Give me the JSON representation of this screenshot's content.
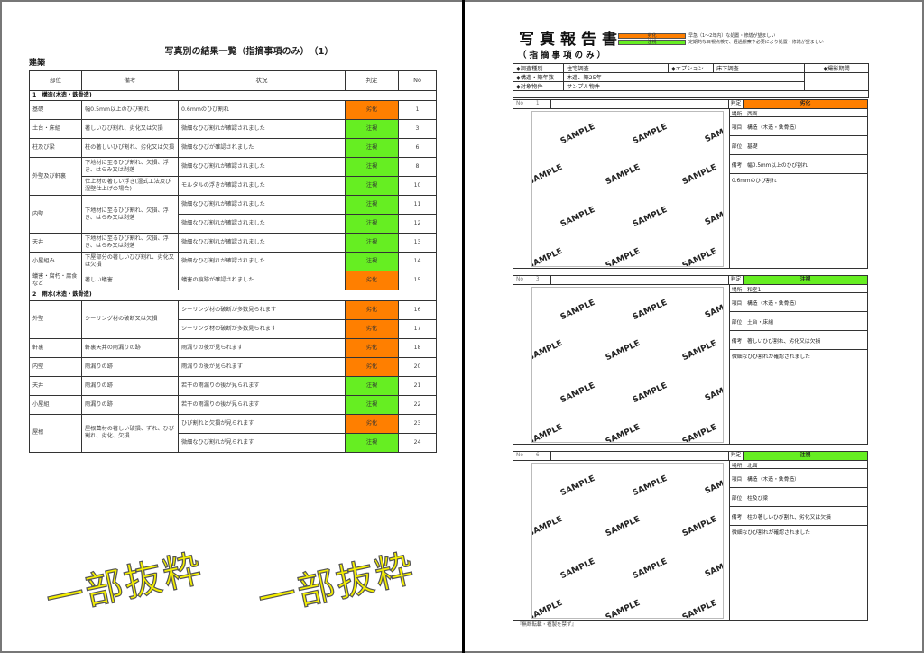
{
  "colors": {
    "deterioration": "#ff7f00",
    "watch": "#66ee22",
    "stamp": "#f5f000"
  },
  "left": {
    "title": "写真別の結果一覧（指摘事項のみ）　（1）",
    "subtitle": "建築",
    "headers": [
      "部位",
      "備考",
      "状況",
      "判定",
      "No"
    ],
    "sections": [
      {
        "label": "1　構造(木造・鉄骨造)",
        "rows": [
          {
            "part": "基礎",
            "note": "幅0.5mm以上のひび割れ",
            "status": "0.6mmのひび割れ",
            "judge": "劣化",
            "no": "1",
            "span": 1,
            "noteSpan": 1
          },
          {
            "part": "土台・床組",
            "note": "著しいひび割れ、劣化又は欠損",
            "status": "微細なひび割れが確認されました",
            "judge": "注視",
            "no": "3",
            "span": 1,
            "noteSpan": 1
          },
          {
            "part": "柱及び梁",
            "note": "柱の著しいひび割れ、劣化又は欠損",
            "status": "微細なひびが確認されました",
            "judge": "注視",
            "no": "6",
            "span": 1,
            "noteSpan": 1
          },
          {
            "part": "外壁及び軒裏",
            "note": "下地材に至るひび割れ、欠損、浮き、はらみ又は剥落",
            "status": "微細なひび割れが確認されました",
            "judge": "注視",
            "no": "8",
            "span": 2,
            "noteSpan": 1
          },
          {
            "part": null,
            "note": "仕上材の著しい浮き(湿式工法及び湿壁仕上げの場合)",
            "status": "モルタルの浮きが確認されました",
            "judge": "注視",
            "no": "10",
            "noteSpan": 1
          },
          {
            "part": "内壁",
            "note": "下地材に至るひび割れ、欠損、浮き、はらみ又は剥落",
            "status": "微細なひび割れが確認されました",
            "judge": "注視",
            "no": "11",
            "span": 2,
            "noteSpan": 2
          },
          {
            "part": null,
            "note": null,
            "status": "微細なひび割れが確認されました",
            "judge": "注視",
            "no": "12"
          },
          {
            "part": "天井",
            "note": "下地材に至るひび割れ、欠損、浮き、はらみ又は剥落",
            "status": "微細なひび割れが確認されました",
            "judge": "注視",
            "no": "13",
            "span": 1,
            "noteSpan": 1
          },
          {
            "part": "小屋組み",
            "note": "下屋部分の著しいひび割れ、劣化又は欠損",
            "status": "微細なひび割れが確認されました",
            "judge": "注視",
            "no": "14",
            "span": 1,
            "noteSpan": 1
          },
          {
            "part": "蟻害・腐朽・腐食など",
            "note": "著しい蟻害",
            "status": "蟻害の痕跡が確認されました",
            "judge": "劣化",
            "no": "15",
            "span": 1,
            "noteSpan": 1
          }
        ]
      },
      {
        "label": "2　雨水(木造・鉄骨造)",
        "rows": [
          {
            "part": "外壁",
            "note": "シーリング材の破断又は欠損",
            "status": "シーリング材の破断が多数見られます",
            "judge": "劣化",
            "no": "16",
            "span": 2,
            "noteSpan": 2
          },
          {
            "part": null,
            "note": null,
            "status": "シーリング材の破断が多数見られます",
            "judge": "劣化",
            "no": "17"
          },
          {
            "part": "軒裏",
            "note": "軒裏天井の雨漏りの跡",
            "status": "雨漏りの後が見られます",
            "judge": "劣化",
            "no": "18",
            "span": 1,
            "noteSpan": 1
          },
          {
            "part": "内壁",
            "note": "雨漏りの跡",
            "status": "雨漏りの後が見られます",
            "judge": "劣化",
            "no": "20",
            "span": 1,
            "noteSpan": 1
          },
          {
            "part": "天井",
            "note": "雨漏りの跡",
            "status": "若干の雨漏りの後が見られます",
            "judge": "注視",
            "no": "21",
            "span": 1,
            "noteSpan": 1
          },
          {
            "part": "小屋組",
            "note": "雨漏りの跡",
            "status": "若干の雨漏りの後が見られます",
            "judge": "注視",
            "no": "22",
            "span": 1,
            "noteSpan": 1
          },
          {
            "part": "屋根",
            "note": "屋根葺材の著しい破損、ずれ、ひび割れ、劣化、欠損",
            "status": "ひび割れと欠損が見られます",
            "judge": "劣化",
            "no": "23",
            "span": 2,
            "noteSpan": 2
          },
          {
            "part": null,
            "note": null,
            "status": "微細なひび割れが見られます",
            "judge": "注視",
            "no": "24"
          }
        ]
      }
    ],
    "stamp": "一部抜粋"
  },
  "right": {
    "title": "写真報告書",
    "subtitle": "（指摘事項のみ）",
    "legend": [
      {
        "label": "劣化",
        "text": "早急（1～2年内）な処置・修繕が望ましい"
      },
      {
        "label": "注視",
        "text": "定期的な目視点検で、経過観察や必要により処置・修繕が望ましい"
      }
    ],
    "info": {
      "survey_type_label": "◆調査種別",
      "survey_type": "住宅調査",
      "option_label": "◆オプション",
      "option": "床下調査",
      "period_label": "◆撮影期間",
      "structure_label": "◆構造・築年数",
      "structure": "木造、築25年",
      "property_label": "◆対象物件",
      "property": "サンプル物件"
    },
    "labels": {
      "no": "No",
      "judge": "判定",
      "place": "場所",
      "item": "項目",
      "part": "部位",
      "note": "備考"
    },
    "photo_watermark": "SAMPLE",
    "entries": [
      {
        "no": "1",
        "judge": "劣化",
        "place": "西面",
        "item": "構造（木造・鉄骨造）",
        "part": "基礎",
        "note": "幅0.5mm以上のひび割れ",
        "status": "0.6mmのひび割れ"
      },
      {
        "no": "3",
        "judge": "注視",
        "place": "和室1",
        "item": "構造（木造・鉄骨造）",
        "part": "土台・床組",
        "note": "著しいひび割れ、劣化又は欠損",
        "status": "微細なひび割れが確認されました"
      },
      {
        "no": "6",
        "judge": "注視",
        "place": "北面",
        "item": "構造（木造・鉄骨造）",
        "part": "柱及び梁",
        "note": "柱の著しいひび割れ、劣化又は欠損",
        "status": "微細なひび割れが確認されました"
      }
    ],
    "footer": "『無断転載・複製を禁ず』",
    "stamp": "一部抜粋"
  }
}
